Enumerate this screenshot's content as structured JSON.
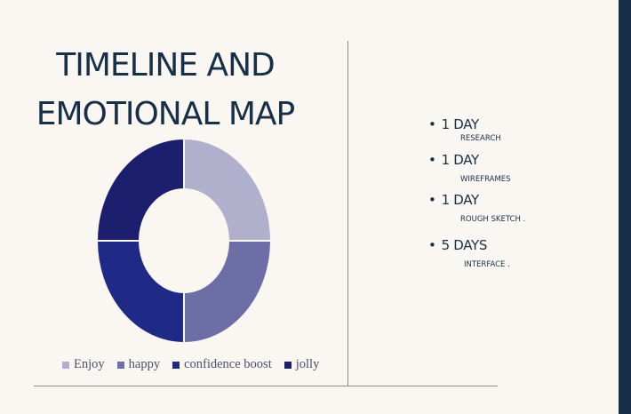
{
  "title": {
    "line1": "TIMELINE AND",
    "line2": "EMOTIONAL MAP"
  },
  "chart_data": {
    "type": "pie",
    "categories": [
      "Enjoy",
      "happy",
      "confidence boost",
      "jolly"
    ],
    "values": [
      25,
      25,
      25,
      25
    ],
    "colors": [
      "#b0b0cc",
      "#6e6ea6",
      "#1f2a86",
      "#1b1f6e"
    ],
    "donut": true,
    "legend_position": "bottom"
  },
  "timeline": [
    {
      "duration": "1 DAY",
      "task": "RESEARCH"
    },
    {
      "duration": "1 DAY",
      "task": "WIREFRAMES"
    },
    {
      "duration": "1 DAY",
      "task": "ROUGH SKETCH ."
    },
    {
      "duration": "5 DAYS",
      "task": "INTERFACE ."
    }
  ],
  "bullet": "•",
  "colors": {
    "title": "#173048",
    "background": "#faf6f2",
    "accent_bar": "#173048"
  }
}
